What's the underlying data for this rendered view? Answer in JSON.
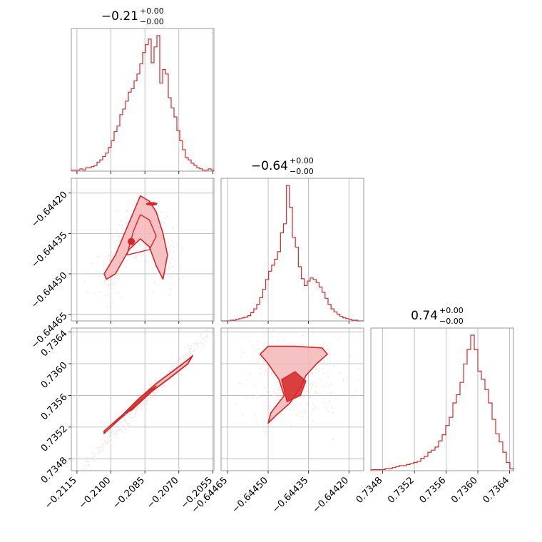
{
  "colors": {
    "accent": "#d62728",
    "light": "#f4b6b8",
    "faint": "#fbe1e2",
    "grid": "#b0b0b0",
    "frame": "#808080"
  },
  "titles": [
    {
      "main": "−0.21",
      "plus": "+0.00",
      "minus": "−0.00"
    },
    {
      "main": "−0.64",
      "plus": "+0.00",
      "minus": "−0.00"
    },
    {
      "main": "0.74",
      "plus": "+0.00",
      "minus": "−0.00"
    }
  ],
  "ticks": {
    "p0": [
      "−0.2115",
      "−0.2100",
      "−0.2085",
      "−0.2070",
      "−0.2055"
    ],
    "p1": [
      "−0.64465",
      "−0.64450",
      "−0.64435",
      "−0.64420"
    ],
    "p2": [
      "0.7348",
      "0.7352",
      "0.7356",
      "0.7360",
      "0.7364"
    ]
  },
  "chart_data": {
    "type": "corner",
    "parameters": [
      "p0",
      "p1",
      "p2"
    ],
    "titles": [
      "−0.21 +0.00 −0.00",
      "−0.64 +0.00 −0.00",
      "0.74 +0.00 −0.00"
    ],
    "ranges": {
      "p0": [
        -0.21175,
        -0.20545
      ],
      "p1": [
        -0.644675,
        -0.644145
      ],
      "p2": [
        0.73465,
        0.73645
      ]
    },
    "hist1d": [
      {
        "param": "p0",
        "bin_edges_range": [
          -0.21175,
          -0.20545
        ],
        "counts": [
          1,
          1,
          1,
          2,
          1,
          3,
          3,
          4,
          5,
          8,
          10,
          13,
          16,
          21,
          27,
          35,
          40,
          50,
          55,
          62,
          70,
          73,
          80,
          86,
          95,
          105,
          112,
          117,
          96,
          110,
          120,
          78,
          90,
          86,
          65,
          56,
          48,
          36,
          27,
          19,
          12,
          10,
          7,
          5,
          3,
          2,
          1,
          1,
          2,
          1
        ]
      },
      {
        "param": "p1",
        "bin_edges_range": [
          -0.644675,
          -0.644145
        ],
        "counts": [
          0,
          0,
          0,
          1,
          1,
          2,
          3,
          4,
          5,
          7,
          11,
          16,
          22,
          31,
          42,
          55,
          66,
          74,
          82,
          92,
          117,
          129,
          180,
          151,
          111,
          98,
          72,
          56,
          47,
          53,
          57,
          55,
          51,
          45,
          38,
          30,
          22,
          16,
          12,
          9,
          6,
          4,
          3,
          2,
          1,
          1,
          0,
          0
        ]
      },
      {
        "param": "p2",
        "bin_edges_range": [
          0.73465,
          0.73645
        ],
        "counts": [
          1,
          1,
          1,
          1,
          2,
          2,
          3,
          4,
          5,
          5,
          6,
          7,
          8,
          9,
          12,
          14,
          18,
          20,
          23,
          29,
          35,
          44,
          52,
          66,
          74,
          86,
          104,
          118,
          132,
          118,
          97,
          89,
          79,
          66,
          50,
          36,
          28,
          18,
          8,
          2
        ]
      }
    ],
    "hist2d": [
      {
        "x": "p0",
        "y": "p1",
        "shape": "broad upside-down V; rising from (−0.2102,−0.64450) to peak near (−0.2085,−0.64424), falling to (−0.2074,−0.64450)"
      },
      {
        "x": "p0",
        "y": "p2",
        "shape": "narrow linear ridge from (−0.2110,0.7348) to (−0.2058,0.7364)"
      },
      {
        "x": "p1",
        "y": "p2",
        "shape": "lobe with dense body near (−0.64441,0.73560) and upper plateau around p2≈0.7360 spanning p1 −0.64450 to −0.64430"
      }
    ]
  }
}
